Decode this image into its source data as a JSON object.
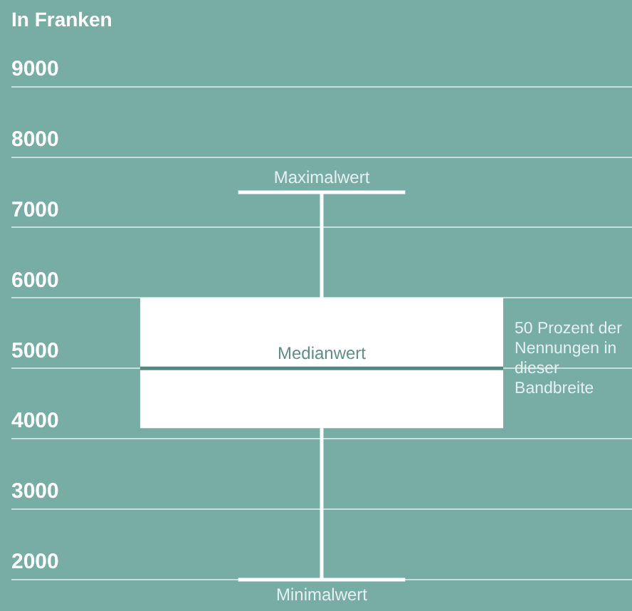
{
  "chart_data": {
    "type": "box",
    "title": "In Franken",
    "categories": [
      null
    ],
    "color": "#ffffff",
    "boxes": [
      {
        "low": 2000,
        "q1": 4150,
        "median": 5000,
        "q3": 6000,
        "high": 7500
      }
    ],
    "ylim": [
      2000,
      9000
    ],
    "yticks": [
      2000,
      3000,
      4000,
      5000,
      6000,
      7000,
      8000,
      9000
    ],
    "grid": "y",
    "legend": false,
    "annotations": [
      {
        "text": "Maximalwert",
        "y": 7500
      },
      {
        "text": "Medianwert",
        "y": 5000
      },
      {
        "text": "Minimalwert",
        "y": 2000
      },
      "50 Prozent der Nennungen in dieser Bandbreite"
    ]
  }
}
